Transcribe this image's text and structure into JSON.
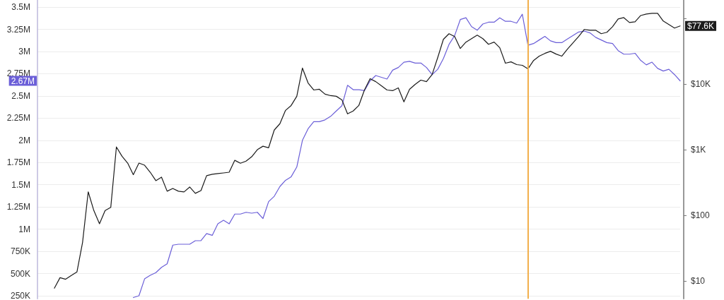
{
  "chart_data": {
    "type": "line",
    "categories": [
      null,
      null,
      null,
      null,
      null,
      null,
      null,
      null,
      null,
      null,
      null,
      null,
      null,
      null,
      null,
      null,
      null,
      null,
      null,
      null,
      null,
      null,
      null,
      null,
      null,
      null,
      null,
      null,
      null,
      null,
      null,
      null,
      null,
      null,
      null,
      null,
      null,
      null,
      null,
      null,
      null,
      null,
      null,
      null,
      null,
      null,
      null,
      null,
      null,
      null,
      null,
      null,
      null,
      null,
      null,
      null,
      null,
      null,
      null,
      null,
      null,
      null,
      null,
      null,
      null,
      null,
      null,
      null,
      null,
      null,
      null,
      null,
      null,
      null,
      null,
      null,
      null,
      null,
      null,
      null,
      null,
      null,
      null,
      null,
      null,
      null,
      null,
      null,
      null,
      null,
      null,
      null,
      null,
      null,
      null,
      null,
      null,
      null,
      null,
      null,
      null,
      null,
      null,
      null,
      null,
      null,
      null,
      null,
      null,
      null,
      null,
      null,
      null,
      null,
      null
    ],
    "series": [
      {
        "color": "#6b5fd8",
        "values": [
          null,
          null,
          null,
          null,
          null,
          null,
          null,
          null,
          null,
          null,
          null,
          null,
          null,
          null,
          null,
          null,
          null,
          230000,
          250000,
          440000,
          480000,
          510000,
          570000,
          610000,
          820000,
          830000,
          830000,
          830000,
          870000,
          870000,
          950000,
          930000,
          1060000,
          1100000,
          1060000,
          1170000,
          1170000,
          1190000,
          1180000,
          1190000,
          1120000,
          1310000,
          1370000,
          1480000,
          1550000,
          1590000,
          1700000,
          2000000,
          2130000,
          2210000,
          2210000,
          2230000,
          2270000,
          2330000,
          2390000,
          2620000,
          2570000,
          2570000,
          2560000,
          2670000,
          2730000,
          2710000,
          2690000,
          2790000,
          2820000,
          2880000,
          2890000,
          2870000,
          2870000,
          2820000,
          2740000,
          2800000,
          2920000,
          3080000,
          3180000,
          3360000,
          3380000,
          3280000,
          3240000,
          3310000,
          3330000,
          3330000,
          3380000,
          3340000,
          3340000,
          3320000,
          3420000,
          3070000,
          3090000,
          3130000,
          3170000,
          3120000,
          3100000,
          3100000,
          3140000,
          3180000,
          3220000,
          3230000,
          3210000,
          3160000,
          3130000,
          3100000,
          3090000,
          3010000,
          2970000,
          2970000,
          2980000,
          2900000,
          2850000,
          2880000,
          2810000,
          2780000,
          2800000,
          2740000,
          2670000
        ]
      },
      {
        "color": "#1b1b1b",
        "axis": "y2",
        "values": [
          null,
          null,
          null,
          7.8,
          11.3,
          10.7,
          12.2,
          13.8,
          39,
          230,
          119,
          75,
          119,
          133,
          1110,
          800,
          630,
          420,
          630,
          585,
          457,
          340,
          385,
          235,
          259,
          235,
          229,
          272,
          218,
          240,
          405,
          425,
          436,
          446,
          457,
          695,
          627,
          676,
          787,
          1010,
          1140,
          1080,
          2010,
          2510,
          4010,
          4760,
          6580,
          17700,
          10500,
          8200,
          8410,
          7080,
          6730,
          6580,
          5810,
          3550,
          3920,
          4760,
          8200,
          12200,
          11000,
          9520,
          8200,
          8010,
          8840,
          5400,
          8410,
          10000,
          11600,
          11000,
          14100,
          25600,
          48500,
          59100,
          53600,
          35200,
          44000,
          49700,
          56200,
          49700,
          40800,
          44000,
          36100,
          21000,
          22000,
          20000,
          19500,
          17200,
          23100,
          26900,
          29600,
          31900,
          28900,
          26900,
          34400,
          42900,
          53600,
          68600,
          66800,
          66800,
          59100,
          62100,
          75600,
          99300,
          104000,
          87700,
          89900,
          112000,
          118000,
          121000,
          121000,
          92200,
          81500,
          72000,
          77600
        ],
        "value_labels": [
          null,
          null,
          null,
          null,
          null,
          null,
          null,
          null,
          null,
          null,
          null,
          null,
          null,
          null,
          null,
          null,
          null,
          null,
          null,
          null,
          null,
          null,
          null,
          null,
          null,
          null,
          null,
          null,
          null,
          null,
          null,
          null,
          null,
          null,
          null,
          null,
          null,
          null,
          null,
          null,
          null,
          null,
          null,
          null,
          null,
          null,
          null,
          null,
          null,
          null,
          null,
          null,
          null,
          null,
          null,
          null,
          null,
          null,
          null,
          null,
          null,
          null,
          null,
          null,
          null,
          null,
          null,
          null,
          null,
          null,
          null,
          null,
          null,
          null,
          null,
          null,
          null,
          null,
          null,
          null,
          null,
          null,
          null,
          null,
          null,
          null,
          null,
          null,
          null,
          null,
          null,
          null,
          null,
          null,
          null,
          null,
          null,
          null,
          null,
          null,
          null,
          null,
          null,
          null,
          null,
          null,
          null,
          null,
          null,
          null,
          null,
          null,
          null,
          null,
          "$77.6K"
        ]
      }
    ],
    "annotations": [
      {
        "text": "2.67M",
        "y": 2670000
      }
    ],
    "ylim": [
      217000,
      3580000
    ],
    "yticks": [
      {
        "value": 250000,
        "label": "250K"
      },
      {
        "value": 500000,
        "label": "500K"
      },
      {
        "value": 750000,
        "label": "750K"
      },
      {
        "value": 1000000,
        "label": "1M"
      },
      {
        "value": 1250000,
        "label": "1.25M"
      },
      {
        "value": 1500000,
        "label": "1.5M"
      },
      {
        "value": 1750000,
        "label": "1.75M"
      },
      {
        "value": 2000000,
        "label": "2M"
      },
      {
        "value": 2250000,
        "label": "2.25M"
      },
      {
        "value": 2500000,
        "label": "2.5M"
      },
      {
        "value": 2750000,
        "label": "2.75M"
      },
      {
        "value": 3000000,
        "label": "3M"
      },
      {
        "value": 3250000,
        "label": "3.25M"
      },
      {
        "value": 3500000,
        "label": "3.5M"
      }
    ],
    "y2lim": [
      5.4,
      193000
    ],
    "y2ticks": [
      {
        "value": 10,
        "label": "$10"
      },
      {
        "value": 100,
        "label": "$100"
      },
      {
        "value": 1000,
        "label": "$1K"
      },
      {
        "value": 10000,
        "label": "$10K"
      },
      {
        "value": 100000,
        "label": null
      }
    ],
    "log": "y2",
    "grid": "y",
    "marker": "none"
  }
}
